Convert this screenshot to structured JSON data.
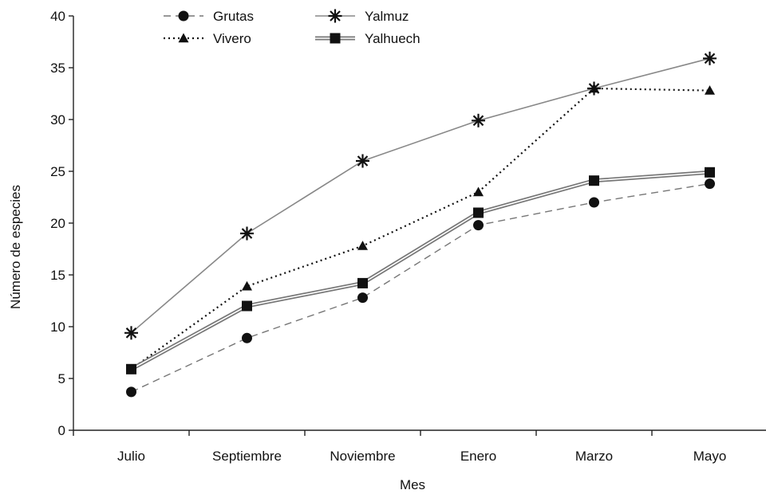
{
  "chart_data": {
    "type": "line",
    "xlabel": "Mes",
    "ylabel": "Número de especies",
    "categories": [
      "Julio",
      "Septiembre",
      "Noviembre",
      "Enero",
      "Marzo",
      "Mayo"
    ],
    "ylim": [
      0,
      40
    ],
    "yticks": [
      0,
      5,
      10,
      15,
      20,
      25,
      30,
      35,
      40
    ],
    "grid": false,
    "legend_position": "top-left",
    "series": [
      {
        "name": "Grutas",
        "marker": "circle",
        "line_style": "dashed",
        "color": "#777777",
        "values": [
          3.7,
          8.9,
          12.8,
          19.8,
          22.0,
          23.8
        ]
      },
      {
        "name": "Vivero",
        "marker": "triangle",
        "line_style": "dotted",
        "color": "#111111",
        "values": [
          5.9,
          13.9,
          17.8,
          23.0,
          33.0,
          32.8
        ]
      },
      {
        "name": "Yalmuz",
        "marker": "asterisk",
        "line_style": "solid",
        "color": "#888888",
        "values": [
          9.4,
          19.0,
          26.0,
          29.9,
          33.0,
          35.9
        ]
      },
      {
        "name": "Yalhuech",
        "marker": "square",
        "line_style": "double",
        "color": "#777777",
        "values": [
          5.9,
          12.0,
          14.2,
          21.0,
          24.1,
          24.9
        ]
      }
    ]
  }
}
